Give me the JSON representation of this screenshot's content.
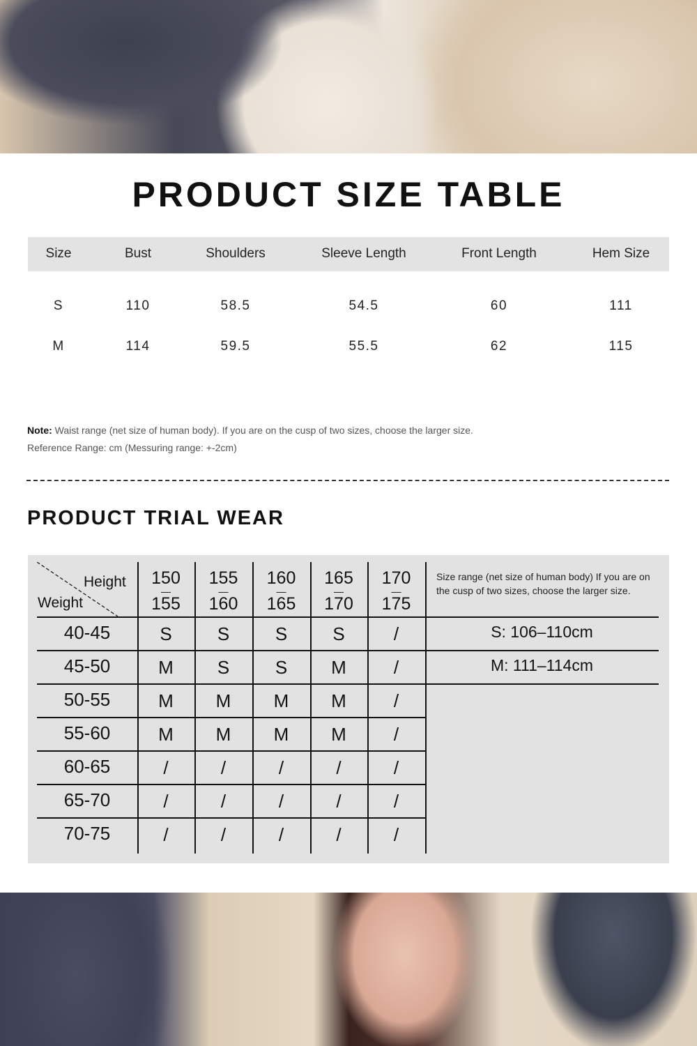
{
  "title": "PRODUCT SIZE TABLE",
  "size_table": {
    "headers": [
      "Size",
      "Bust",
      "Shoulders",
      "Sleeve Length",
      "Front Length",
      "Hem Size"
    ],
    "rows": [
      [
        "S",
        "110",
        "58.5",
        "54.5",
        "60",
        "111"
      ],
      [
        "M",
        "114",
        "59.5",
        "55.5",
        "62",
        "115"
      ]
    ]
  },
  "note": {
    "label": "Note:",
    "text": "Waist range (net size of human body). If you are on the cusp of two sizes, choose the larger size.",
    "reference": "Reference Range: cm (Messuring range: +-2cm)"
  },
  "trial": {
    "title": "PRODUCT TRIAL WEAR",
    "corner_height": "Height",
    "corner_weight": "Weight",
    "heights": [
      [
        "150",
        "155"
      ],
      [
        "155",
        "160"
      ],
      [
        "160",
        "165"
      ],
      [
        "165",
        "170"
      ],
      [
        "170",
        "175"
      ]
    ],
    "height_separator": "—",
    "range_note": "Size range (net size of human body) If you are on the cusp of two sizes, choose the larger size.",
    "ranges": [
      "S: 106–110cm",
      "M: 111–114cm"
    ],
    "rows": [
      {
        "weight": "40-45",
        "sizes": [
          "S",
          "S",
          "S",
          "S",
          "/"
        ]
      },
      {
        "weight": "45-50",
        "sizes": [
          "M",
          "S",
          "S",
          "M",
          "/"
        ]
      },
      {
        "weight": "50-55",
        "sizes": [
          "M",
          "M",
          "M",
          "M",
          "/"
        ]
      },
      {
        "weight": "55-60",
        "sizes": [
          "M",
          "M",
          "M",
          "M",
          "/"
        ]
      },
      {
        "weight": "60-65",
        "sizes": [
          "/",
          "/",
          "/",
          "/",
          "/"
        ]
      },
      {
        "weight": "65-70",
        "sizes": [
          "/",
          "/",
          "/",
          "/",
          "/"
        ]
      },
      {
        "weight": "70-75",
        "sizes": [
          "/",
          "/",
          "/",
          "/",
          "/"
        ]
      }
    ]
  }
}
